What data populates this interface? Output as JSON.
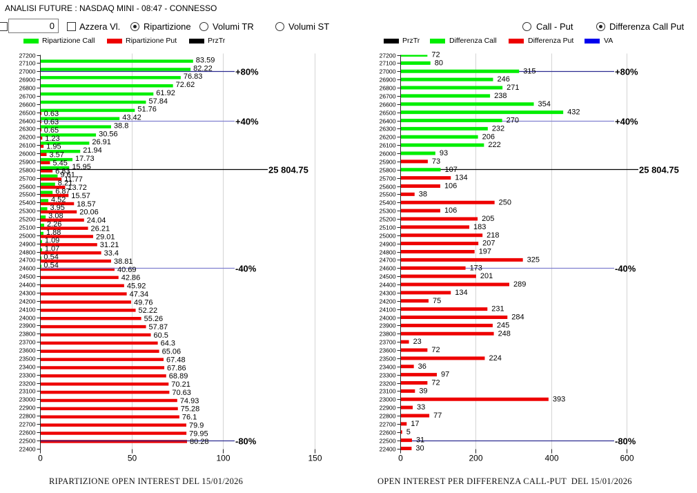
{
  "window": {
    "title": "ANALISI FUTURE : NASDAQ MINI - 08:47 - CONNESSO"
  },
  "controls": {
    "enable_checkbox": {
      "checked": false
    },
    "value_input": "0",
    "reset_checkbox": {
      "label": "Azzera Vl.",
      "checked": false
    },
    "left_modes": [
      {
        "label": "Ripartizione",
        "selected": true
      },
      {
        "label": "Volumi TR",
        "selected": false
      },
      {
        "label": "Volumi ST",
        "selected": false
      }
    ],
    "right_modes": [
      {
        "label": "Call - Put",
        "selected": false
      },
      {
        "label": "Differenza Call Put",
        "selected": true
      }
    ]
  },
  "chart_data": [
    {
      "type": "bar",
      "orientation": "horizontal",
      "title": "RIPARTIZIONE OPEN INTEREST DEL 15/01/2026",
      "xlabel": "",
      "ylabel": "",
      "xlim": [
        0,
        150
      ],
      "xticks": [
        0,
        50,
        100,
        150
      ],
      "grid": true,
      "legend_position": "top-left",
      "legend": [
        {
          "label": "Ripartizione Call",
          "color": "#00ee00"
        },
        {
          "label": "Ripartizione Put",
          "color": "#ee0000"
        },
        {
          "label": "PrzTr",
          "color": "#000000"
        }
      ],
      "categories": [
        27200,
        27100,
        27000,
        26900,
        26800,
        26700,
        26600,
        26500,
        26400,
        26300,
        26200,
        26100,
        26000,
        25900,
        25800,
        25700,
        25600,
        25500,
        25400,
        25300,
        25200,
        25100,
        25000,
        24900,
        24800,
        24700,
        24600,
        24500,
        24400,
        24300,
        24200,
        24100,
        24000,
        23900,
        23800,
        23700,
        23600,
        23500,
        23400,
        23300,
        23200,
        23100,
        23000,
        22900,
        22800,
        22700,
        22600,
        22500,
        22400
      ],
      "series": [
        {
          "name": "Ripartizione Call",
          "color": "#00ee00",
          "values": [
            null,
            83.59,
            82.22,
            76.83,
            72.62,
            61.92,
            57.84,
            51.76,
            43.42,
            38.8,
            30.56,
            26.91,
            21.94,
            17.73,
            15.95,
            9.61,
            8.21,
            6.87,
            4.52,
            3.95,
            3.08,
            2.26,
            1.88,
            1.09,
            1.07,
            0.54,
            0.54,
            null,
            null,
            null,
            null,
            null,
            null,
            null,
            null,
            null,
            null,
            null,
            null,
            null,
            null,
            null,
            null,
            null,
            null,
            null,
            null,
            null,
            null
          ]
        },
        {
          "name": "Ripartizione Put",
          "color": "#ee0000",
          "values": [
            null,
            null,
            null,
            null,
            null,
            null,
            null,
            0.63,
            0.63,
            0.65,
            1.23,
            1.95,
            3.57,
            5.45,
            6.83,
            11.77,
            13.72,
            15.57,
            18.57,
            20.06,
            24.04,
            26.21,
            29.01,
            31.21,
            33.4,
            38.81,
            40.69,
            42.86,
            45.92,
            47.34,
            49.76,
            52.22,
            55.26,
            57.87,
            60.5,
            64.3,
            65.06,
            67.48,
            67.86,
            68.89,
            70.21,
            70.63,
            74.93,
            75.28,
            76.1,
            79.9,
            79.95,
            80.28,
            null
          ]
        }
      ],
      "reference_lines": [
        {
          "label": "+80%",
          "value": 27000,
          "color": "#2a2a90"
        },
        {
          "label": "+40%",
          "value": 26400,
          "color": "#7f7fcf"
        },
        {
          "label": "25 804.75",
          "value": 25804.75,
          "color": "#000000"
        },
        {
          "label": "-40%",
          "value": 24600,
          "color": "#7f7fcf"
        },
        {
          "label": "-80%",
          "value": 22500,
          "color": "#2a2a90"
        }
      ]
    },
    {
      "type": "bar",
      "orientation": "horizontal",
      "title": "OPEN INTEREST PER DIFFERENZA CALL-PUT  DEL 15/01/2026",
      "xlabel": "",
      "ylabel": "",
      "xlim": [
        0,
        600
      ],
      "xticks": [
        0,
        200,
        400,
        600
      ],
      "grid": true,
      "legend_position": "top-left",
      "legend": [
        {
          "label": "PrzTr",
          "color": "#000000"
        },
        {
          "label": "Differenza Call",
          "color": "#00ee00"
        },
        {
          "label": "Differenza Put",
          "color": "#ee0000"
        },
        {
          "label": "VA",
          "color": "#0000ee"
        }
      ],
      "categories": [
        27200,
        27100,
        27000,
        26900,
        26800,
        26700,
        26600,
        26500,
        26400,
        26300,
        26200,
        26100,
        26000,
        25900,
        25800,
        25700,
        25600,
        25500,
        25400,
        25300,
        25200,
        25100,
        25000,
        24900,
        24800,
        24700,
        24600,
        24500,
        24400,
        24300,
        24200,
        24100,
        24000,
        23900,
        23800,
        23700,
        23600,
        23500,
        23400,
        23300,
        23200,
        23100,
        23000,
        22900,
        22800,
        22700,
        22600,
        22500,
        22400
      ],
      "series": [
        {
          "name": "Differenza Call",
          "color": "#00ee00",
          "values": [
            72,
            80,
            315,
            246,
            271,
            238,
            354,
            432,
            270,
            232,
            206,
            222,
            93,
            null,
            107,
            null,
            null,
            null,
            null,
            null,
            null,
            null,
            null,
            null,
            null,
            null,
            null,
            null,
            null,
            null,
            null,
            null,
            null,
            null,
            null,
            null,
            null,
            null,
            null,
            null,
            null,
            null,
            null,
            null,
            null,
            null,
            null,
            null,
            null
          ]
        },
        {
          "name": "Differenza Put",
          "color": "#ee0000",
          "values": [
            null,
            null,
            null,
            null,
            null,
            null,
            null,
            null,
            null,
            null,
            null,
            null,
            null,
            73,
            null,
            134,
            106,
            38,
            250,
            106,
            205,
            183,
            218,
            207,
            197,
            325,
            173,
            201,
            289,
            134,
            75,
            231,
            284,
            245,
            248,
            23,
            72,
            224,
            36,
            97,
            72,
            39,
            393,
            33,
            77,
            17,
            5,
            31,
            30
          ]
        }
      ],
      "reference_lines": [
        {
          "label": "+80%",
          "value": 27000,
          "color": "#2a2a90"
        },
        {
          "label": "+40%",
          "value": 26400,
          "color": "#7f7fcf"
        },
        {
          "label": "25 804.75",
          "value": 25804.75,
          "color": "#000000"
        },
        {
          "label": "-40%",
          "value": 24600,
          "color": "#7f7fcf"
        },
        {
          "label": "-80%",
          "value": 22500,
          "color": "#2a2a90"
        }
      ]
    }
  ]
}
